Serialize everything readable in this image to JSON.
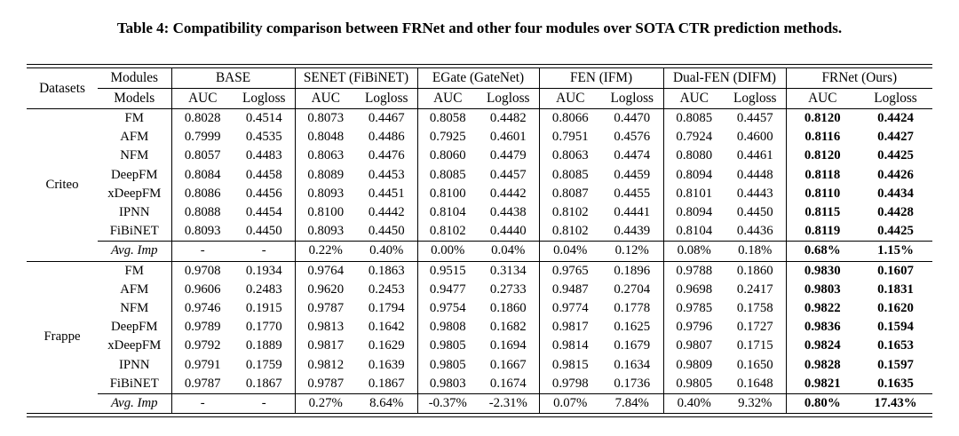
{
  "title": "Table 4: Compatibility comparison between FRNet and other four modules over SOTA CTR prediction methods.",
  "table": {
    "header": {
      "datasets_label": "Datasets",
      "modules_label": "Modules",
      "models_label": "Models",
      "groups": [
        "BASE",
        "SENET (FiBiNET)",
        "EGate (GateNet)",
        "FEN (IFM)",
        "Dual-FEN (DIFM)",
        "FRNet (Ours)"
      ],
      "metric_labels": [
        "AUC",
        "Logloss"
      ]
    },
    "sections": [
      {
        "dataset": "Criteo",
        "rows": [
          {
            "model": "FM",
            "values": [
              "0.8028",
              "0.4514",
              "0.8073",
              "0.4467",
              "0.8058",
              "0.4482",
              "0.8066",
              "0.4470",
              "0.8085",
              "0.4457",
              "0.8120",
              "0.4424"
            ]
          },
          {
            "model": "AFM",
            "values": [
              "0.7999",
              "0.4535",
              "0.8048",
              "0.4486",
              "0.7925",
              "0.4601",
              "0.7951",
              "0.4576",
              "0.7924",
              "0.4600",
              "0.8116",
              "0.4427"
            ]
          },
          {
            "model": "NFM",
            "values": [
              "0.8057",
              "0.4483",
              "0.8063",
              "0.4476",
              "0.8060",
              "0.4479",
              "0.8063",
              "0.4474",
              "0.8080",
              "0.4461",
              "0.8120",
              "0.4425"
            ]
          },
          {
            "model": "DeepFM",
            "values": [
              "0.8084",
              "0.4458",
              "0.8089",
              "0.4453",
              "0.8085",
              "0.4457",
              "0.8085",
              "0.4459",
              "0.8094",
              "0.4448",
              "0.8118",
              "0.4426"
            ]
          },
          {
            "model": "xDeepFM",
            "values": [
              "0.8086",
              "0.4456",
              "0.8093",
              "0.4451",
              "0.8100",
              "0.4442",
              "0.8087",
              "0.4455",
              "0.8101",
              "0.4443",
              "0.8110",
              "0.4434"
            ]
          },
          {
            "model": "IPNN",
            "values": [
              "0.8088",
              "0.4454",
              "0.8100",
              "0.4442",
              "0.8104",
              "0.4438",
              "0.8102",
              "0.4441",
              "0.8094",
              "0.4450",
              "0.8115",
              "0.4428"
            ]
          },
          {
            "model": "FiBiNET",
            "values": [
              "0.8093",
              "0.4450",
              "0.8093",
              "0.4450",
              "0.8102",
              "0.4440",
              "0.8102",
              "0.4439",
              "0.8104",
              "0.4436",
              "0.8119",
              "0.4425"
            ]
          },
          {
            "model": "Avg. Imp",
            "is_avg": true,
            "values": [
              "-",
              "-",
              "0.22%",
              "0.40%",
              "0.00%",
              "0.04%",
              "0.04%",
              "0.12%",
              "0.08%",
              "0.18%",
              "0.68%",
              "1.15%"
            ]
          }
        ]
      },
      {
        "dataset": "Frappe",
        "rows": [
          {
            "model": "FM",
            "values": [
              "0.9708",
              "0.1934",
              "0.9764",
              "0.1863",
              "0.9515",
              "0.3134",
              "0.9765",
              "0.1896",
              "0.9788",
              "0.1860",
              "0.9830",
              "0.1607"
            ]
          },
          {
            "model": "AFM",
            "values": [
              "0.9606",
              "0.2483",
              "0.9620",
              "0.2453",
              "0.9477",
              "0.2733",
              "0.9487",
              "0.2704",
              "0.9698",
              "0.2417",
              "0.9803",
              "0.1831"
            ]
          },
          {
            "model": "NFM",
            "values": [
              "0.9746",
              "0.1915",
              "0.9787",
              "0.1794",
              "0.9754",
              "0.1860",
              "0.9774",
              "0.1778",
              "0.9785",
              "0.1758",
              "0.9822",
              "0.1620"
            ]
          },
          {
            "model": "DeepFM",
            "values": [
              "0.9789",
              "0.1770",
              "0.9813",
              "0.1642",
              "0.9808",
              "0.1682",
              "0.9817",
              "0.1625",
              "0.9796",
              "0.1727",
              "0.9836",
              "0.1594"
            ]
          },
          {
            "model": "xDeepFM",
            "values": [
              "0.9792",
              "0.1889",
              "0.9817",
              "0.1629",
              "0.9805",
              "0.1694",
              "0.9814",
              "0.1679",
              "0.9807",
              "0.1715",
              "0.9824",
              "0.1653"
            ]
          },
          {
            "model": "IPNN",
            "values": [
              "0.9791",
              "0.1759",
              "0.9812",
              "0.1639",
              "0.9805",
              "0.1667",
              "0.9815",
              "0.1634",
              "0.9809",
              "0.1650",
              "0.9828",
              "0.1597"
            ]
          },
          {
            "model": "FiBiNET",
            "values": [
              "0.9787",
              "0.1867",
              "0.9787",
              "0.1867",
              "0.9803",
              "0.1674",
              "0.9798",
              "0.1736",
              "0.9805",
              "0.1648",
              "0.9821",
              "0.1635"
            ]
          },
          {
            "model": "Avg. Imp",
            "is_avg": true,
            "values": [
              "-",
              "-",
              "0.27%",
              "8.64%",
              "-0.37%",
              "-2.31%",
              "0.07%",
              "7.84%",
              "0.40%",
              "9.32%",
              "0.80%",
              "17.43%"
            ]
          }
        ]
      }
    ]
  }
}
